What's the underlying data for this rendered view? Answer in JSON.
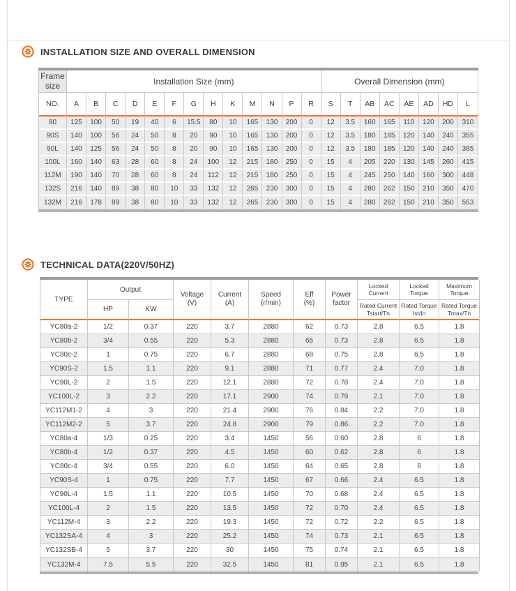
{
  "colors": {
    "accent_orange": "#ef7622",
    "bar_gray_top": "#9d9d9d",
    "bar_gray_bottom": "#b2b2b2",
    "row_gray": "#ececec"
  },
  "installation": {
    "title": "INSTALLATION SIZE AND OVERALL DIMENSION",
    "table": {
      "frame_size_label": [
        "Frame",
        "size"
      ],
      "installation_label": "Installation Size (mm)",
      "overall_label": "Overall Dimension (mm)",
      "columns": [
        "NO.",
        "A",
        "B",
        "C",
        "D",
        "E",
        "F",
        "G",
        "H",
        "K",
        "M",
        "N",
        "P",
        "R",
        "S",
        "T",
        "AB",
        "AC",
        "AE",
        "AD",
        "HD",
        "L"
      ],
      "rows": [
        [
          "80",
          "125",
          "100",
          "50",
          "19",
          "40",
          "6",
          "15.5",
          "80",
          "10",
          "165",
          "130",
          "200",
          "0",
          "12",
          "3.5",
          "160",
          "165",
          "110",
          "120",
          "200",
          "310"
        ],
        [
          "90S",
          "140",
          "100",
          "56",
          "24",
          "50",
          "8",
          "20",
          "90",
          "10",
          "165",
          "130",
          "200",
          "0",
          "12",
          "3.5",
          "180",
          "185",
          "120",
          "140",
          "240",
          "355"
        ],
        [
          "90L",
          "140",
          "125",
          "56",
          "24",
          "50",
          "8",
          "20",
          "90",
          "10",
          "165",
          "130",
          "200",
          "0",
          "12",
          "3.5",
          "180",
          "185",
          "120",
          "140",
          "240",
          "385"
        ],
        [
          "100L",
          "160",
          "140",
          "63",
          "28",
          "60",
          "8",
          "24",
          "100",
          "12",
          "215",
          "180",
          "250",
          "0",
          "15",
          "4",
          "205",
          "220",
          "130",
          "145",
          "260",
          "415"
        ],
        [
          "112M",
          "190",
          "140",
          "70",
          "28",
          "60",
          "8",
          "24",
          "112",
          "12",
          "215",
          "180",
          "250",
          "0",
          "15",
          "4",
          "245",
          "250",
          "140",
          "160",
          "300",
          "448"
        ],
        [
          "132S",
          "216",
          "140",
          "89",
          "38",
          "80",
          "10",
          "33",
          "132",
          "12",
          "265",
          "230",
          "300",
          "0",
          "15",
          "4",
          "280",
          "262",
          "150",
          "210",
          "350",
          "470"
        ],
        [
          "132M",
          "216",
          "178",
          "89",
          "38",
          "80",
          "10",
          "33",
          "132",
          "12",
          "265",
          "230",
          "300",
          "0",
          "15",
          "4",
          "280",
          "262",
          "150",
          "210",
          "350",
          "553"
        ]
      ]
    }
  },
  "technical": {
    "title": "TECHNICAL DATA(220V/50HZ)",
    "table": {
      "type_label": "TYPE",
      "output_label": "Output",
      "hp_label": "HP",
      "kw_label": "KW",
      "voltage_label": [
        "Voltage",
        "(V)"
      ],
      "current_label": [
        "Current",
        "(A)"
      ],
      "speed_label": [
        "Speed",
        "(r/min)"
      ],
      "eff_label": [
        "Eff",
        "(%)"
      ],
      "power_factor_label": [
        "Power",
        "factor"
      ],
      "locked_current_label": "Locked Current",
      "locked_current_sub": [
        "Rated Current",
        "Tstart/Tn"
      ],
      "locked_torque_label": "Locked Torque",
      "locked_torque_sub": [
        "Rated Torque",
        "Ist/In"
      ],
      "maximum_torque_label": "Maximum Torque",
      "maximum_torque_sub": [
        "Rated Torque",
        "Tmax/Tn"
      ],
      "rows": [
        [
          "YC80a-2",
          "1/2",
          "0.37",
          "220",
          "3.7",
          "2880",
          "62",
          "0.73",
          "2.8",
          "6.5",
          "1.8"
        ],
        [
          "YC80b-2",
          "3/4",
          "0.55",
          "220",
          "5.3",
          "2880",
          "65",
          "0.73",
          "2.8",
          "6.5",
          "1.8"
        ],
        [
          "YC80c-2",
          "1",
          "0.75",
          "220",
          "6.7",
          "2880",
          "68",
          "0.75",
          "2.8",
          "6.5",
          "1.8"
        ],
        [
          "YC90S-2",
          "1.5",
          "1.1",
          "220",
          "9.1",
          "2880",
          "71",
          "0.77",
          "2.4",
          "7.0",
          "1.8"
        ],
        [
          "YC90L-2",
          "2",
          "1.5",
          "220",
          "12.1",
          "2880",
          "72",
          "0.78",
          "2.4",
          "7.0",
          "1.8"
        ],
        [
          "YC100L-2",
          "3",
          "2.2",
          "220",
          "17.1",
          "2900",
          "74",
          "0.79",
          "2.1",
          "7.0",
          "1.8"
        ],
        [
          "YC112M1-2",
          "4",
          "3",
          "220",
          "21.4",
          "2900",
          "76",
          "0.84",
          "2.2",
          "7.0",
          "1.8"
        ],
        [
          "YC112M2-2",
          "5",
          "3.7",
          "220",
          "24.8",
          "2900",
          "79",
          "0.86",
          "2.2",
          "7.0",
          "1.8"
        ],
        [
          "YC80a-4",
          "1/3",
          "0.25",
          "220",
          "3.4",
          "1450",
          "56",
          "0.60",
          "2.8",
          "6",
          "1.8"
        ],
        [
          "YC80b-4",
          "1/2",
          "0.37",
          "220",
          "4.5",
          "1450",
          "60",
          "0.62",
          "2.8",
          "6",
          "1.8"
        ],
        [
          "YC80c-4",
          "3/4",
          "0.55",
          "220",
          "6.0",
          "1450",
          "64",
          "0.65",
          "2.8",
          "6",
          "1.8"
        ],
        [
          "YC90S-4",
          "1",
          "0.75",
          "220",
          "7.7",
          "1450",
          "67",
          "0.66",
          "2.4",
          "6.5",
          "1.8"
        ],
        [
          "YC90L-4",
          "1.5",
          "1.1",
          "220",
          "10.5",
          "1450",
          "70",
          "0.68",
          "2.4",
          "6.5",
          "1.8"
        ],
        [
          "YC100L-4",
          "2",
          "1.5",
          "220",
          "13.5",
          "1450",
          "72",
          "0.70",
          "2.4",
          "6.5",
          "1.8"
        ],
        [
          "YC112M-4",
          "3",
          "2.2",
          "220",
          "19.3",
          "1450",
          "72",
          "0.72",
          "2.2",
          "6.5",
          "1.8"
        ],
        [
          "YC132SA-4",
          "4",
          "3",
          "220",
          "25.2",
          "1450",
          "74",
          "0.73",
          "2.1",
          "6.5",
          "1.8"
        ],
        [
          "YC132SB-4",
          "5",
          "3.7",
          "220",
          "30",
          "1450",
          "75",
          "0.74",
          "2.1",
          "6.5",
          "1.8"
        ],
        [
          "YC132M-4",
          "7.5",
          "5.5",
          "220",
          "32.5",
          "1450",
          "81",
          "0.95",
          "2.1",
          "6.5",
          "1.8"
        ]
      ]
    }
  }
}
